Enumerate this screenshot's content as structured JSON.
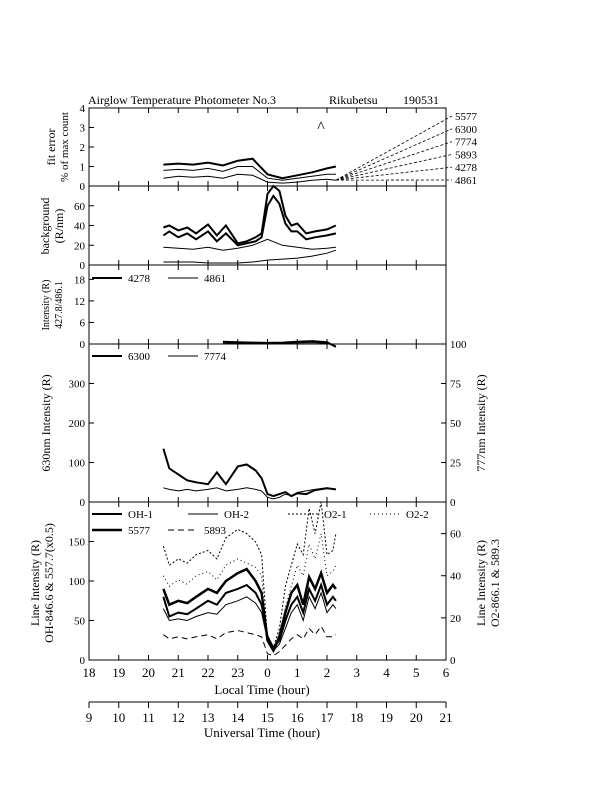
{
  "title": "Airglow Temperature Photometer No.3",
  "site": "Rikubetsu",
  "date": "190531",
  "x_axes": {
    "local_time": {
      "label": "Local Time (hour)",
      "ticks": [
        "18",
        "19",
        "20",
        "21",
        "22",
        "23",
        "0",
        "1",
        "2",
        "3",
        "4",
        "5",
        "6"
      ]
    },
    "universal_time": {
      "label": "Universal Time (hour)",
      "ticks": [
        "9",
        "10",
        "11",
        "12",
        "13",
        "14",
        "15",
        "16",
        "17",
        "18",
        "19",
        "20",
        "21"
      ]
    }
  },
  "chart_data": [
    {
      "type": "line",
      "panel": "fit-error",
      "ylabel": [
        "fit error",
        "% of max count"
      ],
      "ylim": [
        0,
        4
      ],
      "yticks": [
        "0",
        "1",
        "2",
        "3",
        "4"
      ],
      "side_legend": [
        "5577",
        "6300",
        "7774",
        "5893",
        "4278",
        "4861"
      ],
      "annotation": "^",
      "series": [
        {
          "x": [
            20.5,
            21,
            21.5,
            22,
            22.5,
            23,
            23.5,
            24,
            24.5,
            25,
            25.5,
            26,
            26.3
          ],
          "y": [
            1.1,
            1.15,
            1.1,
            1.2,
            1.05,
            1.3,
            1.4,
            0.6,
            0.4,
            0.55,
            0.7,
            0.9,
            1.0
          ]
        },
        {
          "x": [
            20.5,
            21,
            21.5,
            22,
            22.5,
            23,
            23.5,
            24,
            24.5,
            25,
            25.5,
            26,
            26.3
          ],
          "y": [
            0.8,
            0.85,
            0.8,
            0.9,
            0.75,
            1.0,
            1.0,
            0.4,
            0.3,
            0.4,
            0.5,
            0.6,
            0.6
          ]
        },
        {
          "x": [
            20.5,
            21,
            21.5,
            22,
            22.5,
            23,
            23.5,
            24,
            24.5,
            25,
            25.5,
            26,
            26.3
          ],
          "y": [
            0.4,
            0.5,
            0.45,
            0.5,
            0.4,
            0.6,
            0.55,
            0.2,
            0.15,
            0.2,
            0.3,
            0.35,
            0.3
          ]
        }
      ]
    },
    {
      "type": "line",
      "panel": "background",
      "ylabel": [
        "background",
        "(R/nm)"
      ],
      "ylim": [
        0,
        80
      ],
      "yticks": [
        "0",
        "20",
        "40",
        "60"
      ],
      "series": [
        {
          "x": [
            20.5,
            20.7,
            21,
            21.3,
            21.6,
            22,
            22.3,
            22.6,
            23,
            23.3,
            23.6,
            23.8,
            24,
            24.2,
            24.4,
            24.6,
            24.8,
            25,
            25.3,
            25.6,
            26,
            26.3
          ],
          "y": [
            38,
            40,
            35,
            38,
            32,
            41,
            30,
            40,
            22,
            24,
            28,
            32,
            72,
            80,
            75,
            50,
            40,
            42,
            32,
            34,
            36,
            40
          ]
        },
        {
          "x": [
            20.5,
            20.7,
            21,
            21.3,
            21.6,
            22,
            22.3,
            22.6,
            23,
            23.3,
            23.6,
            23.8,
            24,
            24.2,
            24.4,
            24.6,
            24.8,
            25,
            25.3,
            25.6,
            26,
            26.3
          ],
          "y": [
            30,
            34,
            28,
            32,
            26,
            34,
            24,
            32,
            20,
            22,
            24,
            28,
            60,
            70,
            62,
            42,
            34,
            34,
            26,
            28,
            30,
            32
          ]
        },
        {
          "x": [
            20.5,
            21,
            21.5,
            22,
            22.5,
            23,
            23.5,
            24,
            24.5,
            25,
            25.5,
            26,
            26.3
          ],
          "y": [
            18,
            17,
            16,
            18,
            15,
            17,
            20,
            26,
            20,
            18,
            16,
            17,
            18
          ]
        },
        {
          "x": [
            20.5,
            21,
            21.5,
            22,
            22.5,
            23,
            23.5,
            24,
            24.5,
            25,
            25.5,
            26,
            26.3
          ],
          "y": [
            3,
            3,
            3,
            2,
            2,
            2,
            3,
            5,
            6,
            7,
            9,
            12,
            15
          ]
        }
      ]
    },
    {
      "type": "line",
      "panel": "4278-4861",
      "ylabel": [
        "Intensity (R)",
        "427.8/486.1"
      ],
      "ylim": [
        0,
        22
      ],
      "yticks": [
        "0",
        "6",
        "12",
        "18"
      ],
      "series": [
        {
          "name": "4278",
          "x": [
            22.5,
            23,
            23.5,
            24,
            24.5,
            25,
            25.5,
            26,
            26.3
          ],
          "y": [
            0.6,
            0.5,
            0.4,
            0.3,
            0.4,
            0.6,
            0.8,
            0.5,
            -0.8
          ]
        },
        {
          "name": "4861",
          "x": [
            22.5,
            23,
            23.5,
            24,
            24.5,
            25,
            25.5,
            26,
            26.3
          ],
          "y": [
            0.3,
            0.2,
            0.2,
            0.1,
            0.2,
            0.3,
            0.4,
            0.2,
            -0.5
          ]
        }
      ]
    },
    {
      "type": "line",
      "panel": "6300-7774",
      "ylabel": "630nm Intensity (R)",
      "ylabel_right": "777nm Intensity (R)",
      "ylim": [
        0,
        400
      ],
      "ylim_right": [
        0,
        100
      ],
      "yticks": [
        "0",
        "100",
        "200",
        "300"
      ],
      "yticks_right": [
        "0",
        "25",
        "50",
        "75",
        "100"
      ],
      "series": [
        {
          "name": "6300",
          "x": [
            20.5,
            20.7,
            21,
            21.3,
            21.6,
            22,
            22.3,
            22.6,
            23,
            23.3,
            23.6,
            23.8,
            24,
            24.2,
            24.4,
            24.6,
            24.8,
            25,
            25.3,
            25.6,
            26,
            26.3
          ],
          "y": [
            135,
            85,
            70,
            55,
            50,
            45,
            75,
            45,
            90,
            95,
            80,
            60,
            20,
            15,
            20,
            25,
            15,
            22,
            20,
            30,
            35,
            32
          ]
        },
        {
          "name": "7774",
          "x": [
            20.5,
            20.7,
            21,
            21.3,
            21.6,
            22,
            22.3,
            22.6,
            23,
            23.3,
            23.6,
            23.8,
            24,
            24.2,
            24.4,
            24.6,
            24.8,
            25,
            25.3,
            25.6,
            26,
            26.3
          ],
          "y": [
            9,
            8,
            7,
            8,
            7,
            8,
            9,
            7,
            8,
            9,
            8,
            7,
            3,
            2,
            3,
            5,
            4,
            6,
            7,
            8,
            9,
            8
          ]
        }
      ]
    },
    {
      "type": "line",
      "panel": "line-intensity",
      "ylabel": [
        "Line Intensity (R)",
        "OH-846.6 & 557.7(x0.5)"
      ],
      "ylabel_right": [
        "Line Intensity (R)",
        "O2-866.1 & 589.3"
      ],
      "ylim": [
        0,
        200
      ],
      "ylim_right": [
        0,
        75
      ],
      "yticks": [
        "0",
        "50",
        "100",
        "150"
      ],
      "yticks_right": [
        "0",
        "20",
        "40",
        "60"
      ],
      "series": [
        {
          "name": "OH-1",
          "x": [
            20.5,
            20.7,
            21,
            21.3,
            21.6,
            22,
            22.3,
            22.6,
            23,
            23.3,
            23.6,
            23.8,
            24,
            24.2,
            24.4,
            24.6,
            24.8,
            25,
            25.2,
            25.4,
            25.6,
            25.8,
            26,
            26.2,
            26.3
          ],
          "y": [
            80,
            55,
            60,
            58,
            65,
            75,
            70,
            85,
            90,
            95,
            85,
            70,
            30,
            15,
            25,
            50,
            70,
            80,
            60,
            90,
            75,
            95,
            70,
            80,
            75
          ]
        },
        {
          "name": "OH-2",
          "x": [
            20.5,
            20.7,
            21,
            21.3,
            21.6,
            22,
            22.3,
            22.6,
            23,
            23.3,
            23.6,
            23.8,
            24,
            24.2,
            24.4,
            24.6,
            24.8,
            25,
            25.2,
            25.4,
            25.6,
            25.8,
            26,
            26.2,
            26.3
          ],
          "y": [
            65,
            50,
            52,
            50,
            55,
            60,
            58,
            70,
            75,
            80,
            72,
            60,
            25,
            12,
            20,
            40,
            60,
            70,
            50,
            80,
            65,
            85,
            60,
            70,
            65
          ]
        },
        {
          "name": "O2-1",
          "x": [
            20.5,
            20.7,
            21,
            21.3,
            21.6,
            22,
            22.3,
            22.6,
            23,
            23.3,
            23.6,
            23.8,
            24,
            24.2,
            24.4,
            24.6,
            24.8,
            25,
            25.2,
            25.4,
            25.6,
            25.8,
            26,
            26.2,
            26.3
          ],
          "y": [
            54,
            45,
            48,
            46,
            50,
            52,
            48,
            58,
            62,
            60,
            56,
            50,
            10,
            6,
            15,
            35,
            45,
            55,
            50,
            72,
            60,
            75,
            50,
            52,
            60
          ]
        },
        {
          "name": "O2-2",
          "x": [
            20.5,
            20.7,
            21,
            21.3,
            21.6,
            22,
            22.3,
            22.6,
            23,
            23.3,
            23.6,
            23.8,
            24,
            24.2,
            24.4,
            24.6,
            24.8,
            25,
            25.2,
            25.4,
            25.6,
            25.8,
            26,
            26.2,
            26.3
          ],
          "y": [
            40,
            35,
            38,
            36,
            40,
            42,
            38,
            45,
            48,
            46,
            44,
            40,
            8,
            5,
            12,
            25,
            35,
            45,
            40,
            55,
            48,
            60,
            40,
            42,
            45
          ]
        },
        {
          "name": "5577",
          "x": [
            20.5,
            20.7,
            21,
            21.3,
            21.6,
            22,
            22.3,
            22.6,
            23,
            23.3,
            23.6,
            23.8,
            24,
            24.2,
            24.4,
            24.6,
            24.8,
            25,
            25.2,
            25.4,
            25.6,
            25.8,
            26,
            26.2,
            26.3
          ],
          "y": [
            90,
            70,
            75,
            72,
            80,
            90,
            85,
            100,
            110,
            115,
            100,
            85,
            25,
            12,
            30,
            60,
            85,
            95,
            70,
            105,
            90,
            110,
            85,
            95,
            90
          ]
        },
        {
          "name": "5893",
          "x": [
            20.5,
            20.7,
            21,
            21.3,
            21.6,
            22,
            22.3,
            22.6,
            23,
            23.3,
            23.6,
            23.8,
            24,
            24.2,
            24.4,
            24.6,
            24.8,
            25,
            25.2,
            25.4,
            25.6,
            25.8,
            26,
            26.2,
            26.3
          ],
          "y": [
            12,
            10,
            11,
            10,
            11,
            12,
            10,
            13,
            14,
            13,
            12,
            11,
            3,
            2,
            4,
            7,
            10,
            12,
            10,
            15,
            12,
            16,
            11,
            11,
            12
          ]
        }
      ]
    }
  ]
}
